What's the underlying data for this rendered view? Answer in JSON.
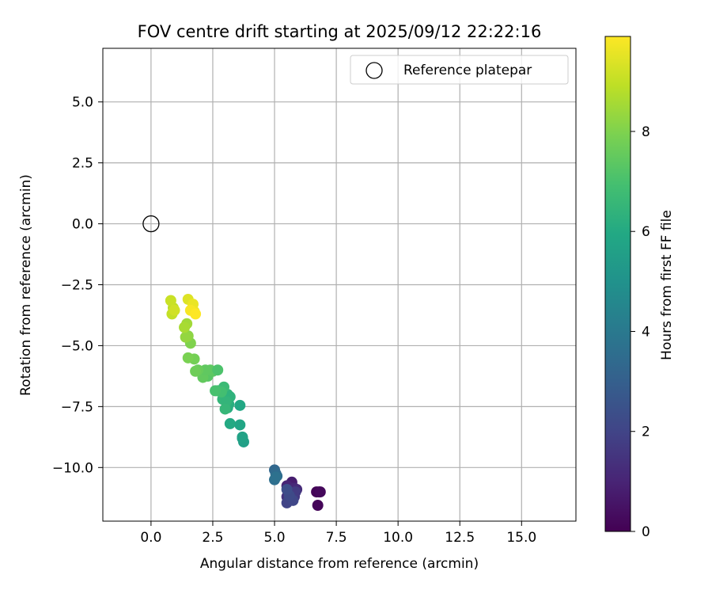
{
  "chart_data": {
    "type": "scatter",
    "title": "FOV centre drift starting at 2025/09/12 22:22:16",
    "xlabel": "Angular distance from reference (arcmin)",
    "ylabel": "Rotation from reference (arcmin)",
    "xlim": [
      -1.95,
      17.2
    ],
    "ylim": [
      -12.2,
      7.2
    ],
    "xticks": [
      0.0,
      2.5,
      5.0,
      7.5,
      10.0,
      12.5,
      15.0
    ],
    "xtick_labels": [
      "0.0",
      "2.5",
      "5.0",
      "7.5",
      "10.0",
      "12.5",
      "15.0"
    ],
    "yticks": [
      5.0,
      2.5,
      0.0,
      -2.5,
      -5.0,
      -7.5,
      -10.0
    ],
    "ytick_labels": [
      "5.0",
      "2.5",
      "0.0",
      "−2.5",
      "−5.0",
      "−7.5",
      "−10.0"
    ],
    "grid": true,
    "legend": {
      "position": "upper right",
      "entries": [
        {
          "label": "Reference platepar",
          "marker": "open-circle"
        }
      ]
    },
    "reference_point": {
      "x": 0.0,
      "y": 0.0
    },
    "colorbar": {
      "label": "Hours from first FF file",
      "range": [
        0,
        9.9
      ],
      "ticks": [
        0,
        2,
        4,
        6,
        8
      ],
      "tick_labels": [
        "0",
        "2",
        "4",
        "6",
        "8"
      ],
      "colormap": "viridis"
    },
    "series": [
      {
        "x": [
          6.7,
          6.8,
          6.75,
          6.85,
          5.7,
          5.6,
          5.5,
          5.8,
          5.9,
          5.6,
          5.7,
          5.5,
          5.8,
          5.85,
          5.6,
          5.7,
          5.5,
          5.75,
          5.6,
          5.5,
          5.0,
          5.05,
          5.1,
          5.0,
          5.05,
          3.7,
          3.75,
          3.7,
          3.6,
          3.2,
          3.1,
          3.6,
          3.15,
          3.0,
          3.1,
          2.9,
          3.2,
          3.05,
          3.0,
          2.95,
          2.7,
          2.85,
          2.6,
          2.2,
          2.3,
          2.5,
          2.4,
          2.1,
          2.2,
          1.9,
          1.8,
          1.75,
          1.5,
          2.7,
          1.6,
          1.5,
          1.4,
          1.45,
          1.35,
          0.9,
          0.85,
          0.8,
          0.95,
          1.5,
          1.7,
          1.75,
          1.6,
          1.8
        ],
        "y": [
          -11.0,
          -11.0,
          -11.55,
          -11.0,
          -10.6,
          -10.8,
          -10.75,
          -10.85,
          -10.9,
          -11.0,
          -11.1,
          -11.2,
          -11.2,
          -11.0,
          -11.3,
          -11.3,
          -11.45,
          -11.35,
          -11.15,
          -10.9,
          -10.1,
          -10.25,
          -10.35,
          -10.5,
          -10.4,
          -8.8,
          -8.95,
          -8.75,
          -8.25,
          -8.2,
          -7.55,
          -7.45,
          -7.4,
          -7.25,
          -7.0,
          -7.2,
          -7.1,
          -7.3,
          -7.6,
          -6.7,
          -6.85,
          -6.9,
          -6.85,
          -6.2,
          -6.25,
          -6.05,
          -6.0,
          -6.3,
          -6.0,
          -6.0,
          -6.05,
          -5.55,
          -5.5,
          -6.0,
          -4.9,
          -4.6,
          -4.65,
          -4.1,
          -4.25,
          -3.45,
          -3.7,
          -3.15,
          -3.55,
          -3.1,
          -3.3,
          -3.6,
          -3.55,
          -3.7
        ],
        "hours": [
          0.1,
          0.1,
          0.15,
          0.2,
          0.8,
          0.9,
          1.0,
          1.1,
          1.2,
          1.3,
          1.4,
          1.5,
          1.6,
          1.7,
          1.8,
          1.9,
          2.0,
          2.1,
          2.2,
          2.3,
          3.3,
          3.4,
          3.5,
          3.6,
          3.7,
          5.5,
          5.6,
          5.7,
          5.8,
          6.0,
          6.1,
          5.9,
          6.2,
          6.3,
          6.4,
          6.5,
          6.35,
          6.45,
          6.55,
          6.7,
          6.8,
          6.9,
          7.0,
          7.2,
          7.3,
          7.35,
          7.4,
          7.5,
          7.45,
          7.6,
          7.7,
          7.8,
          7.9,
          7.1,
          8.0,
          8.2,
          8.3,
          8.5,
          8.6,
          8.9,
          9.0,
          9.1,
          9.2,
          9.4,
          9.6,
          9.7,
          9.8,
          9.9
        ]
      }
    ]
  }
}
